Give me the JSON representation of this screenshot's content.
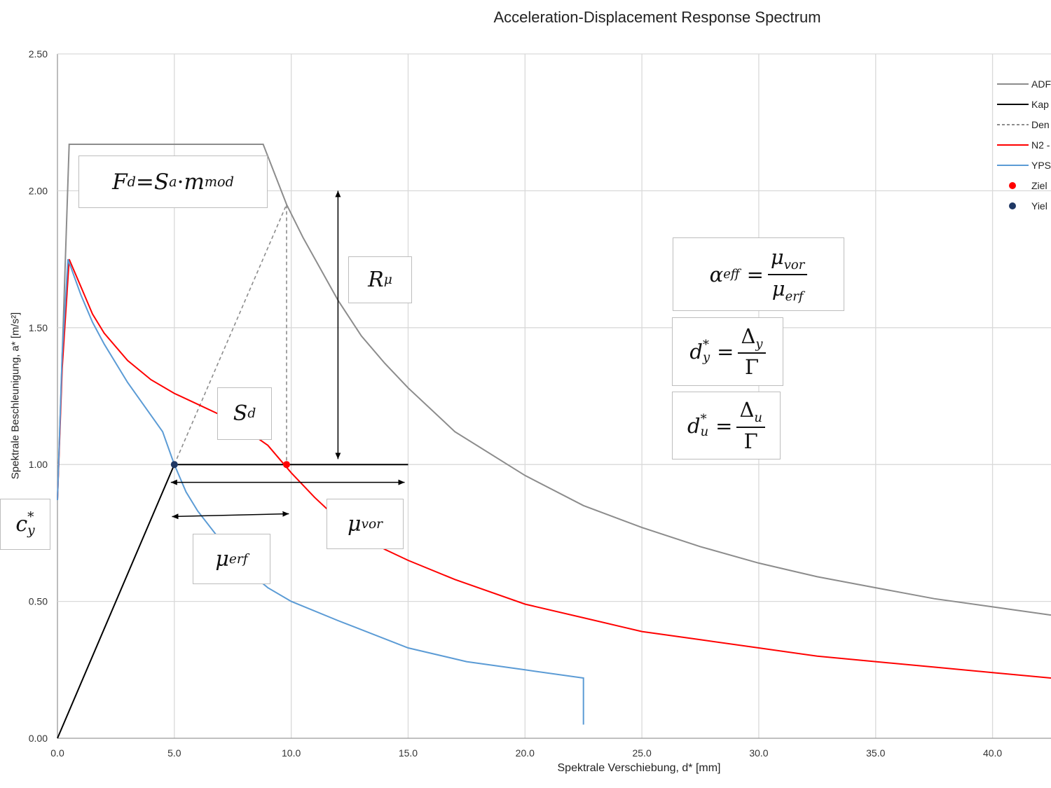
{
  "chart_data": {
    "type": "line",
    "title": "Acceleration-Displacement Response Spectrum",
    "xlabel": "Spektrale Verschiebung, d* [mm]",
    "ylabel": "Spektrale Beschleunigung, a* [m/s²]",
    "xlim": [
      0,
      42.5
    ],
    "ylim": [
      0,
      2.5
    ],
    "x_ticks": [
      "0.0",
      "5.0",
      "10.0",
      "15.0",
      "20.0",
      "25.0",
      "30.0",
      "35.0",
      "40.0"
    ],
    "y_ticks": [
      "0.00",
      "0.50",
      "1.00",
      "1.50",
      "2.00",
      "2.50"
    ],
    "grid": true,
    "legend_position": "top-right",
    "series": [
      {
        "name": "ADR",
        "color": "#8c8c8c",
        "dash": "solid",
        "points": [
          [
            0,
            0.87
          ],
          [
            0.5,
            2.17
          ],
          [
            8.8,
            2.17
          ],
          [
            9.8,
            1.95
          ],
          [
            10.5,
            1.83
          ],
          [
            12,
            1.6
          ],
          [
            13,
            1.47
          ],
          [
            14,
            1.37
          ],
          [
            15,
            1.28
          ],
          [
            17,
            1.12
          ],
          [
            20,
            0.96
          ],
          [
            22.5,
            0.85
          ],
          [
            25,
            0.77
          ],
          [
            27.5,
            0.7
          ],
          [
            30,
            0.64
          ],
          [
            32.5,
            0.59
          ],
          [
            35,
            0.55
          ],
          [
            37.5,
            0.51
          ],
          [
            40,
            0.48
          ],
          [
            42.5,
            0.45
          ]
        ]
      },
      {
        "name": "Kapazität",
        "color": "#000000",
        "dash": "solid",
        "points": [
          [
            0,
            0
          ],
          [
            5.0,
            1.0
          ],
          [
            15.0,
            1.0
          ]
        ]
      },
      {
        "name": "Demand",
        "color": "#8c8c8c",
        "dash": "dashed",
        "points": [
          [
            5.0,
            1.0
          ],
          [
            9.8,
            1.95
          ],
          [
            9.8,
            1.0
          ]
        ]
      },
      {
        "name": "N2",
        "color": "#ff0000",
        "dash": "solid",
        "points": [
          [
            0,
            0.87
          ],
          [
            0.2,
            1.35
          ],
          [
            0.5,
            1.75
          ],
          [
            1.0,
            1.65
          ],
          [
            1.5,
            1.55
          ],
          [
            2,
            1.48
          ],
          [
            3,
            1.38
          ],
          [
            4,
            1.31
          ],
          [
            5,
            1.26
          ],
          [
            6,
            1.22
          ],
          [
            7,
            1.18
          ],
          [
            8,
            1.13
          ],
          [
            9,
            1.07
          ],
          [
            10,
            0.97
          ],
          [
            11,
            0.88
          ],
          [
            12,
            0.8
          ],
          [
            13,
            0.74
          ],
          [
            14,
            0.69
          ],
          [
            15,
            0.65
          ],
          [
            17,
            0.58
          ],
          [
            20,
            0.49
          ],
          [
            22.5,
            0.44
          ],
          [
            25,
            0.39
          ],
          [
            27.5,
            0.36
          ],
          [
            30,
            0.33
          ],
          [
            32.5,
            0.3
          ],
          [
            35,
            0.28
          ],
          [
            37.5,
            0.26
          ],
          [
            40,
            0.24
          ],
          [
            42.5,
            0.22
          ]
        ]
      },
      {
        "name": "YPS",
        "color": "#5b9bd5",
        "dash": "solid",
        "points": [
          [
            0,
            0.87
          ],
          [
            0.2,
            1.4
          ],
          [
            0.45,
            1.75
          ],
          [
            1.0,
            1.62
          ],
          [
            1.5,
            1.52
          ],
          [
            2,
            1.44
          ],
          [
            3,
            1.3
          ],
          [
            4,
            1.18
          ],
          [
            4.5,
            1.12
          ],
          [
            5,
            1.0
          ],
          [
            5.5,
            0.9
          ],
          [
            6,
            0.83
          ],
          [
            7,
            0.72
          ],
          [
            8,
            0.62
          ],
          [
            9,
            0.55
          ],
          [
            10,
            0.5
          ],
          [
            12,
            0.43
          ],
          [
            15,
            0.33
          ],
          [
            17.5,
            0.28
          ],
          [
            20,
            0.25
          ],
          [
            22.5,
            0.22
          ],
          [
            22.5,
            0.05
          ]
        ]
      }
    ],
    "markers": [
      {
        "name": "Zielverschiebung",
        "x": 9.8,
        "y": 1.0,
        "color": "#ff0000"
      },
      {
        "name": "Yield",
        "x": 5.0,
        "y": 1.0,
        "color": "#1f3864"
      }
    ],
    "legend_labels": [
      "ADF",
      "Kap",
      "Den",
      "N2 -",
      "YPS",
      "Ziel",
      "Yiel"
    ],
    "annotations": {
      "Fd": {
        "lhs": "F",
        "lhs_sub": "d",
        "eq": " = ",
        "s": "S",
        "s_sub": "a",
        "dot": " · ",
        "m": "m",
        "m_sub": "mod"
      },
      "Rmu": {
        "base": "R",
        "sub": "μ"
      },
      "Sd": {
        "base": "S",
        "sub": "d"
      },
      "cy": {
        "base": "c",
        "sub": "y",
        "sup": "*"
      },
      "mu_erf": {
        "base": "μ",
        "sub": "erf"
      },
      "mu_vor": {
        "base": "μ",
        "sub": "vor"
      },
      "alpha": {
        "lhs": "α",
        "lhs_sub": "eff",
        "eq": "=",
        "num": "μ",
        "num_sub": "vor",
        "den": "μ",
        "den_sub": "erf"
      },
      "dy": {
        "lhs": "d",
        "lhs_sub": "y",
        "lhs_sup": "*",
        "eq": "=",
        "num": "Δ",
        "num_sub": "y",
        "den": "Γ"
      },
      "du": {
        "lhs": "d",
        "lhs_sub": "u",
        "lhs_sup": "*",
        "eq": "=",
        "num": "Δ",
        "num_sub": "u",
        "den": "Γ"
      }
    }
  }
}
